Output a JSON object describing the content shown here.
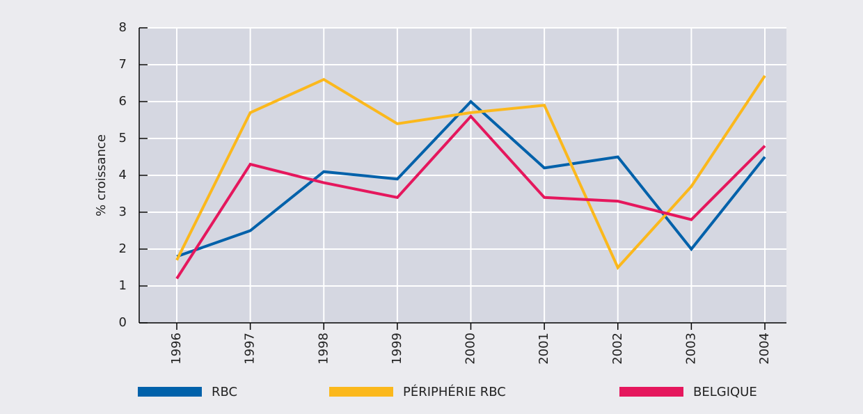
{
  "chart_data": {
    "type": "line",
    "y_label": "% croissance",
    "categories": [
      "1996",
      "1997",
      "1998",
      "1999",
      "2000",
      "2001",
      "2002",
      "2003",
      "2004"
    ],
    "series": [
      {
        "name": "RBC",
        "color": "#0061aa",
        "values": [
          1.8,
          2.5,
          4.1,
          3.9,
          6.0,
          4.2,
          4.5,
          2.0,
          4.5
        ]
      },
      {
        "name": "PÉRIPHÉRIE RBC",
        "color": "#fbb81c",
        "values": [
          1.7,
          5.7,
          6.6,
          5.4,
          5.7,
          5.9,
          1.5,
          3.7,
          6.7
        ]
      },
      {
        "name": "BELGIQUE",
        "color": "#e5175d",
        "values": [
          1.2,
          4.3,
          3.8,
          3.4,
          5.6,
          3.4,
          3.3,
          2.8,
          4.8
        ]
      }
    ],
    "ylim": [
      0,
      8
    ],
    "yticks": [
      0,
      1,
      2,
      3,
      4,
      5,
      6,
      7,
      8
    ],
    "grid": true
  }
}
